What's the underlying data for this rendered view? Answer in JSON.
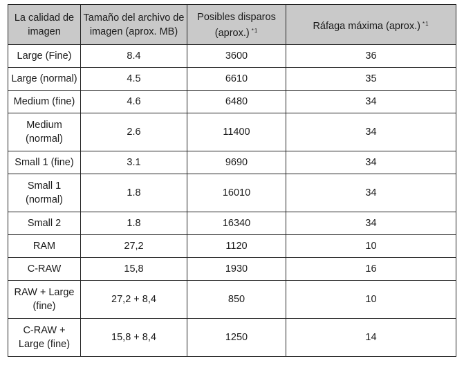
{
  "table": {
    "headers": [
      {
        "label": "La calidad de imagen",
        "note": ""
      },
      {
        "label": "Tamaño del archivo de imagen (aprox. MB)",
        "note": ""
      },
      {
        "label": "Posibles disparos (aprox.)",
        "note": "*1"
      },
      {
        "label": "Ráfaga máxima (aprox.)",
        "note": "*1"
      }
    ],
    "rows": [
      {
        "quality": "Large (Fine)",
        "size": "8.4",
        "shots": "3600",
        "burst": "36"
      },
      {
        "quality": "Large (normal)",
        "size": "4.5",
        "shots": "6610",
        "burst": "35"
      },
      {
        "quality": "Medium (fine)",
        "size": "4.6",
        "shots": "6480",
        "burst": "34"
      },
      {
        "quality": "Medium (normal)",
        "size": "2.6",
        "shots": "11400",
        "burst": "34"
      },
      {
        "quality": "Small 1 (fine)",
        "size": "3.1",
        "shots": "9690",
        "burst": "34"
      },
      {
        "quality": "Small 1 (normal)",
        "size": "1.8",
        "shots": "16010",
        "burst": "34"
      },
      {
        "quality": "Small 2",
        "size": "1.8",
        "shots": "16340",
        "burst": "34"
      },
      {
        "quality": "RAM",
        "size": "27,2",
        "shots": "1120",
        "burst": "10"
      },
      {
        "quality": "C-RAW",
        "size": "15,8",
        "shots": "1930",
        "burst": "16"
      },
      {
        "quality": "RAW + Large (fine)",
        "size": "27,2 + 8,4",
        "shots": "850",
        "burst": "10"
      },
      {
        "quality": "C-RAW + Large (fine)",
        "size": "15,8 + 8,4",
        "shots": "1250",
        "burst": "14"
      }
    ]
  }
}
